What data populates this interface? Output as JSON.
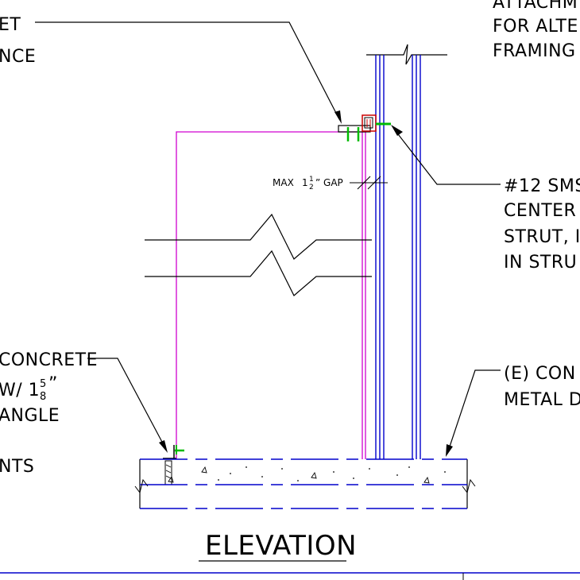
{
  "title": "ELEVATION",
  "gap_note": {
    "prefix": "MAX",
    "whole": "1",
    "num": "1",
    "den": "2",
    "suffix": "” GAP"
  },
  "notes_left_top": [
    "ET",
    "NCE"
  ],
  "notes_left_bottom": {
    "line1": "CONCRETE",
    "line2_prefix": "W/ 1",
    "line2_num": "5",
    "line2_den": "8",
    "line2_suffix": "”",
    "line3": "ANGLE",
    "line4": "NTS"
  },
  "notes_right_top": [
    "ATTACHM",
    "FOR ALTE",
    "FRAMING"
  ],
  "notes_right_mid": [
    "#12 SMS",
    "CENTER",
    "STRUT, I",
    "IN STRU"
  ],
  "notes_right_bottom": [
    "(E) CON",
    "METAL D"
  ],
  "colors": {
    "framing": "#d000d0",
    "strut": "#0000cc",
    "screw": "#00bb00",
    "clip": "#cc0000"
  }
}
